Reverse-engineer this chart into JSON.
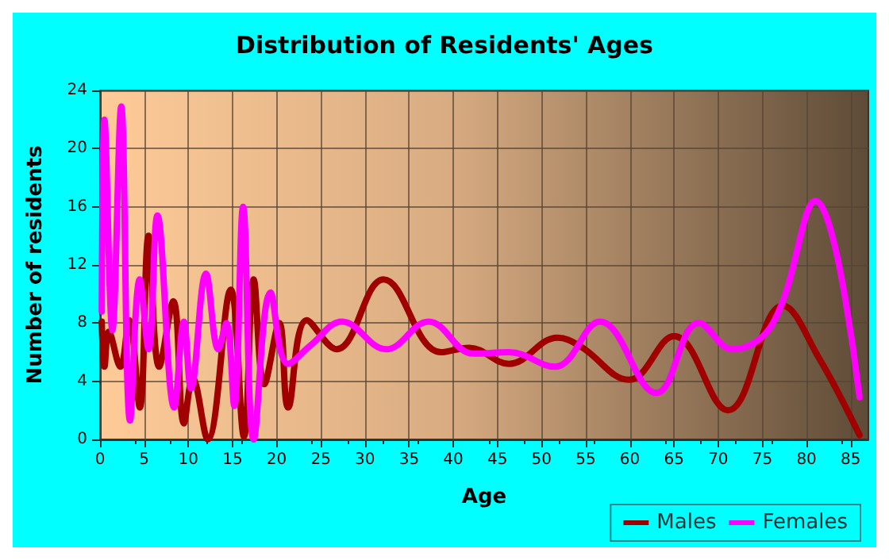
{
  "chart_data": {
    "type": "line",
    "title": "Distribution of Residents' Ages",
    "xlabel": "Age",
    "ylabel": "Number of residents",
    "xlim": [
      0,
      87
    ],
    "xticks": [
      0,
      5,
      10,
      15,
      20,
      25,
      30,
      35,
      40,
      45,
      50,
      55,
      60,
      65,
      70,
      75,
      80,
      85
    ],
    "ylim": [
      0,
      24
    ],
    "yticks": [
      0,
      4,
      8,
      12,
      16,
      20,
      24
    ],
    "grid": true,
    "legend": "bottom right",
    "marker": "none",
    "line_style": "solid",
    "series": [
      {
        "name": "Males",
        "color": "#a00000",
        "x": [
          0.2,
          0.5,
          1,
          2.3,
          3.3,
          4.5,
          5.5,
          6.7,
          8.3,
          9.5,
          10.5,
          12.2,
          14.8,
          16.3,
          17.4,
          18.6,
          20.3,
          21.3,
          23.4,
          26.8,
          32.1,
          38.6,
          41.8,
          46.3,
          51.8,
          54.4,
          59.9,
          65,
          71.1,
          77.3,
          81.4,
          86
        ],
        "values": [
          8.1,
          5,
          7.4,
          5,
          8.2,
          2.2,
          14,
          5,
          9.5,
          1.1,
          4.2,
          0,
          10.3,
          0.2,
          11,
          3.8,
          8,
          2.2,
          8.2,
          6.2,
          11,
          6,
          6.3,
          5.2,
          7,
          6.4,
          4.1,
          7.1,
          2,
          9.2,
          5.6,
          0.3
        ]
      },
      {
        "name": "Females",
        "color": "#ff00ff",
        "x": [
          0.2,
          0.5,
          1.4,
          2.4,
          3.4,
          4.5,
          5.5,
          6.5,
          8.4,
          9.5,
          10.3,
          12,
          13.4,
          14.3,
          15.2,
          16.2,
          17.4,
          19.3,
          21.3,
          23.9,
          27.4,
          32.4,
          37.2,
          42.3,
          46.3,
          51.5,
          56.6,
          63,
          67.8,
          71.6,
          76.2,
          81,
          86
        ],
        "values": [
          8.8,
          22,
          7.5,
          22.9,
          1.3,
          11,
          6.2,
          15.4,
          2.2,
          8.1,
          3.5,
          11.4,
          6.2,
          8,
          2.3,
          16,
          0,
          10.1,
          5.2,
          6.5,
          8.1,
          6.2,
          8.1,
          5.9,
          6,
          5,
          8.1,
          3.2,
          8,
          6.2,
          8,
          16.4,
          2.9
        ]
      }
    ]
  }
}
